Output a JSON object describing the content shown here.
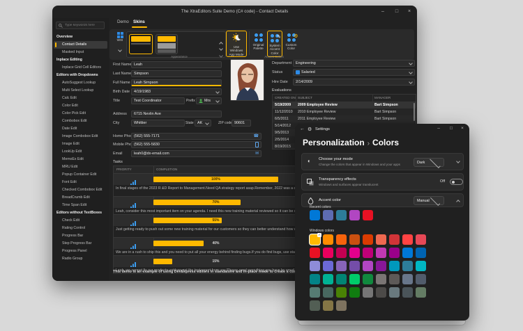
{
  "icons": {
    "minimize": "–",
    "maximize": "□",
    "close": "×",
    "back_arrow": "←",
    "settings_gear": "⚙",
    "pencil": "✎",
    "gear_small": "⚙",
    "phone": "☎",
    "mail": "✉",
    "check": "✓",
    "mode_circle": "◐",
    "breadcrumb_sep": "›"
  },
  "main": {
    "title": "The XtraEditors Suite Demo (C# code) - Contact Details",
    "tabs": {
      "demo": "Demo",
      "skins": "Skins"
    },
    "ribbon": {
      "skin_name": "WXI",
      "app_mode_line1": "Use Windows",
      "app_mode_line2": "App Mode",
      "original_line1": "Original",
      "original_line2": "Palette",
      "system_line1": "System",
      "system_line2": "Accent Color",
      "custom_line1": "Custom",
      "custom_line2": "Color",
      "group_appearance": "Appearance",
      "group_accent": "Accent Colors"
    },
    "sidebar": {
      "search_placeholder": "Type keywords here",
      "sections": [
        {
          "header": "Overview",
          "selected": "Contact Details",
          "items": [
            "Contact Details",
            "Masked Input"
          ]
        },
        {
          "header": "Inplace Editing",
          "selected": "",
          "items": [
            "Inplace Grid Cell Editors"
          ]
        },
        {
          "header": "Editors with Dropdowns",
          "selected": "",
          "items": [
            "AutoSuggest Lookup",
            "Multi Select Lookup",
            "Calc Edit",
            "Color Edit",
            "Color Pick Edit",
            "Combobox Edit",
            "Date Edit",
            "Image Combobox Edit",
            "Image Edit",
            "LookUp Edit",
            "MemoEx Edit",
            "MRU Edit",
            "Popup Container Edit",
            "Font Edit",
            "Checked Combobox Edit",
            "BreadCrumb Edit",
            "Time Span Edit"
          ]
        },
        {
          "header": "Editors without TextBoxes",
          "selected": "",
          "items": [
            "Check Edit",
            "Rating Control",
            "Progress Bar",
            "Step Progress Bar",
            "Progress Panel",
            "Radio Group"
          ]
        }
      ]
    },
    "form": {
      "first_name": {
        "label": "First Name",
        "value": "Leah"
      },
      "last_name": {
        "label": "Last Name",
        "value": "Simpson"
      },
      "full_name": {
        "label": "Full Name",
        "value": "Leah Simpson"
      },
      "birth_date": {
        "label": "Birth Date",
        "value": "4/19/1983"
      },
      "title": {
        "label": "Title",
        "value": "Test Coordinator"
      },
      "prefix": {
        "label": "Prefix",
        "value": "Mrs"
      },
      "address": {
        "label": "Address",
        "value": "6715 Nevlin Ave"
      },
      "city": {
        "label": "City",
        "value": "Whittier"
      },
      "state": {
        "label": "State",
        "value": "AK"
      },
      "zip": {
        "label": "ZIP code",
        "value": "90601"
      },
      "home_phone": {
        "label": "Home Phone",
        "value": "(562) 555-7171"
      },
      "mobile_phone": {
        "label": "Mobile Phone",
        "value": "(562) 555-5830"
      },
      "email": {
        "label": "Email",
        "value": "leah0@dx-email.com"
      },
      "department": {
        "label": "Department",
        "value": "Engineering"
      },
      "status": {
        "label": "Status",
        "value": "Salaried"
      },
      "hire_date": {
        "label": "Hire Date",
        "value": "2/14/2009"
      }
    },
    "evaluations": {
      "label": "Evaluations",
      "columns": [
        "CREATED ON",
        "SUBJECT",
        "MANAGER"
      ],
      "rows": [
        {
          "date": "5/19/2009",
          "subject": "2009 Employee Review",
          "manager": "Bart Simpson",
          "selected": true
        },
        {
          "date": "11/12/2010",
          "subject": "2010 Employee Review",
          "manager": "Bart Simpson",
          "selected": false
        },
        {
          "date": "6/5/2011",
          "subject": "2011 Employee Review",
          "manager": "Bart Simpson",
          "selected": false
        },
        {
          "date": "5/14/2012",
          "subject": "",
          "manager": "",
          "selected": false
        },
        {
          "date": "9/5/2013",
          "subject": "",
          "manager": "",
          "selected": false
        },
        {
          "date": "2/5/2014",
          "subject": "",
          "manager": "",
          "selected": false
        },
        {
          "date": "8/19/2015",
          "subject": "",
          "manager": "",
          "selected": false
        }
      ]
    },
    "tasks": {
      "label": "Tasks",
      "columns": [
        "PRIORITY",
        "COMPLETION"
      ],
      "rows": [
        {
          "completion": 100,
          "completion_label": "100%",
          "lines": 2,
          "note": "In final stages of the 2023 R &D Report to Management.Need QA strategy report asap.Remember, 2022 was a difficult year product quality-wise remedies to issues we encountered."
        },
        {
          "completion": 70,
          "completion_label": "70%",
          "lines": 1,
          "note": "Leah, consider this most important item on your agenda. I need this new training material reviewed so it can be submitted to management. Leah D"
        },
        {
          "completion": 55,
          "completion_label": "55%",
          "lines": 2,
          "note": "Just getting ready to push out some new training material for our customers so they can better understand how our product line fits together.Can everything and it looks really nice."
        },
        {
          "completion": 40,
          "completion_label": "40%",
          "lines": 1,
          "note": "We are in a rush to ship this and you need to put all your energy behind finding bugs.If you do find bugs, use standard reporting mechanisms. We"
        },
        {
          "completion": 15,
          "completion_label": "15%",
          "lines": 1,
          "note": "Leah, we cannot fix our products until we get the test report from you.Please send everything you have by email to me so I can distribute it in the"
        }
      ]
    },
    "footer": "This demo is an example of using DevExpress editors in standalone and in-place mode to create a custom edit form."
  },
  "settings": {
    "title": "Settings",
    "breadcrumb": {
      "root": "Personalization",
      "current": "Colors"
    },
    "mode_card": {
      "title": "Choose your mode",
      "subtitle": "Change the colors that appear in Windows and your apps",
      "value": "Dark"
    },
    "transparency_card": {
      "title": "Transparency effects",
      "subtitle": "Windows and surfaces appear translucent",
      "state": "Off"
    },
    "accent_card": {
      "title": "Accent color",
      "value": "Manual"
    },
    "recent_colors": {
      "label": "Recent colors",
      "colors": [
        "#0078D7",
        "#5E6CB2",
        "#2D7D9A",
        "#B146C2",
        "#E81123"
      ]
    },
    "windows_colors": {
      "label": "Windows colors",
      "selected_index": 0,
      "columns": 9,
      "colors": [
        "#FFB900",
        "#FF8C00",
        "#F7630C",
        "#CA5010",
        "#DA3B01",
        "#EF6950",
        "#D13438",
        "#FF4343",
        "#E74856",
        "#E81123",
        "#EA005E",
        "#C30052",
        "#E3008C",
        "#BF0077",
        "#C239B3",
        "#9A0089",
        "#0078D7",
        "#0063B1",
        "#8E8CD8",
        "#6B69D6",
        "#8764B8",
        "#744DA9",
        "#B146C2",
        "#881798",
        "#0099BC",
        "#2D7D9A",
        "#00B7C3",
        "#038387",
        "#00B294",
        "#018574",
        "#00CC6A",
        "#10893E",
        "#7A7574",
        "#5D5A58",
        "#68768A",
        "#515C6B",
        "#567C73",
        "#486860",
        "#498205",
        "#107C10",
        "#767676",
        "#4C4A48",
        "#69797E",
        "#4A5459",
        "#647C64",
        "#525E54",
        "#847545",
        "#7E735F"
      ]
    },
    "accent_hex": "#FFB900"
  }
}
